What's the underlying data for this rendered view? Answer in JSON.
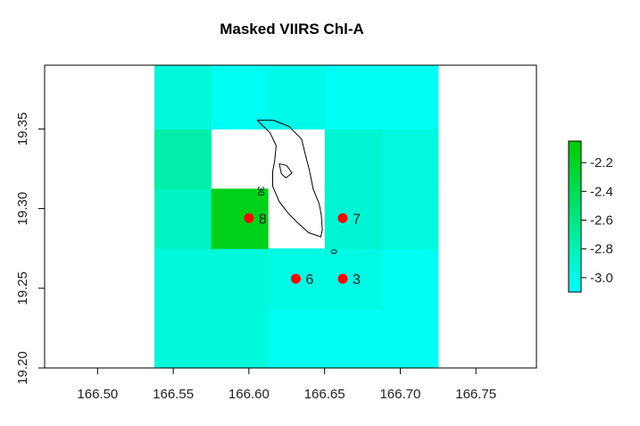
{
  "chart_data": {
    "type": "heatmap",
    "title": "Masked VIIRS Chl-A",
    "xlabel": "",
    "ylabel": "",
    "xlim": [
      166.465,
      166.79
    ],
    "ylim": [
      19.2,
      19.39
    ],
    "x_ticks": [
      166.5,
      166.55,
      166.6,
      166.65,
      166.7,
      166.75
    ],
    "x_tick_labels": [
      "166.50",
      "166.55",
      "166.60",
      "166.65",
      "166.70",
      "166.75"
    ],
    "y_ticks": [
      19.2,
      19.25,
      19.3,
      19.35
    ],
    "y_tick_labels": [
      "19.20",
      "19.25",
      "19.30",
      "19.35"
    ],
    "grid": false,
    "x_edges": [
      166.5375,
      166.575,
      166.6125,
      166.65,
      166.6875,
      166.725
    ],
    "y_edges": [
      19.2,
      19.2375,
      19.275,
      19.3125,
      19.35,
      19.39
    ],
    "cells": [
      [
        -2.95,
        -2.95,
        -3.05,
        -3.05,
        -3.05
      ],
      [
        -2.95,
        -2.95,
        -2.98,
        -2.98,
        -3.05
      ],
      [
        -2.85,
        -2.15,
        null,
        -2.92,
        -2.97
      ],
      [
        -2.75,
        null,
        null,
        -2.92,
        -2.97
      ],
      [
        -2.95,
        -3.05,
        -3.0,
        -3.05,
        -3.05
      ]
    ],
    "colorbar": {
      "min": -3.1,
      "max": -2.05,
      "ticks": [
        -2.2,
        -2.4,
        -2.6,
        -2.8,
        -3.0
      ],
      "tick_labels": [
        "-2.2",
        "-2.4",
        "-2.6",
        "-2.8",
        "-3.0"
      ],
      "low_color": "#00ffff",
      "high_color": "#00cc00"
    },
    "points": [
      {
        "label": "8",
        "x": 166.6,
        "y": 19.294
      },
      {
        "label": "7",
        "x": 166.662,
        "y": 19.294
      },
      {
        "label": "6",
        "x": 166.631,
        "y": 19.256
      },
      {
        "label": "3",
        "x": 166.662,
        "y": 19.256
      }
    ],
    "point_color": "#ff0000",
    "contour_labels": [
      {
        "text": "30",
        "x": 166.606,
        "y": 19.311
      },
      {
        "text": "0",
        "x": 166.654,
        "y": 19.273
      }
    ],
    "contours": [
      [
        [
          166.6055,
          19.3555
        ],
        [
          166.614,
          19.3475
        ],
        [
          166.618,
          19.3395
        ],
        [
          166.617,
          19.3298
        ],
        [
          166.6157,
          19.3234
        ],
        [
          166.6157,
          19.314
        ],
        [
          166.62,
          19.3044
        ],
        [
          166.626,
          19.297
        ],
        [
          166.632,
          19.2913
        ],
        [
          166.6395,
          19.2849
        ],
        [
          166.6475,
          19.2823
        ],
        [
          166.6485,
          19.2866
        ],
        [
          166.6478,
          19.2962
        ],
        [
          166.6465,
          19.3028
        ],
        [
          166.6425,
          19.3122
        ],
        [
          166.64,
          19.3239
        ],
        [
          166.6375,
          19.333
        ],
        [
          166.6348,
          19.3436
        ],
        [
          166.6265,
          19.3515
        ],
        [
          166.6163,
          19.3555
        ],
        [
          166.6055,
          19.3555
        ]
      ],
      [
        [
          166.62,
          19.3282
        ],
        [
          166.6215,
          19.3218
        ],
        [
          166.6245,
          19.3193
        ],
        [
          166.6285,
          19.3223
        ],
        [
          166.625,
          19.327
        ],
        [
          166.62,
          19.3282
        ]
      ]
    ]
  }
}
